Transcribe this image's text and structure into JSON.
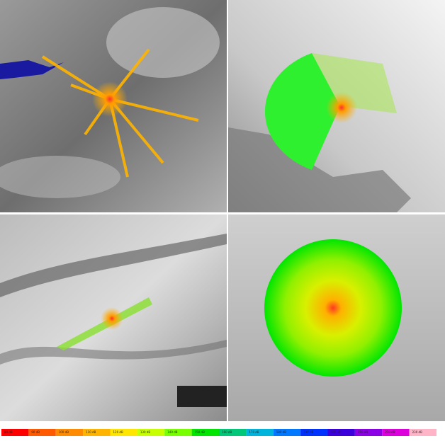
{
  "legend": {
    "items": [
      {
        "label": "80 dB",
        "color": "#ff0000"
      },
      {
        "label": "90 dB",
        "color": "#ff5a00"
      },
      {
        "label": "100 dB",
        "color": "#ff8c00"
      },
      {
        "label": "110 dB",
        "color": "#ffb400"
      },
      {
        "label": "120 dB",
        "color": "#ffe600"
      },
      {
        "label": "130 dB",
        "color": "#c8ff00"
      },
      {
        "label": "140 dB",
        "color": "#78ff00"
      },
      {
        "label": "150 dB",
        "color": "#00e600"
      },
      {
        "label": "160 dB",
        "color": "#00c878"
      },
      {
        "label": "170 dB",
        "color": "#00b4dc"
      },
      {
        "label": "180 dB",
        "color": "#0078ff"
      },
      {
        "label": "190 dB",
        "color": "#0032ff"
      },
      {
        "label": "200 dB",
        "color": "#3c00dc"
      },
      {
        "label": "210 dB",
        "color": "#8c00e6"
      },
      {
        "label": "220 dB",
        "color": "#dc00dc"
      },
      {
        "label": "230 dB",
        "color": "#ffb4c8"
      }
    ]
  }
}
